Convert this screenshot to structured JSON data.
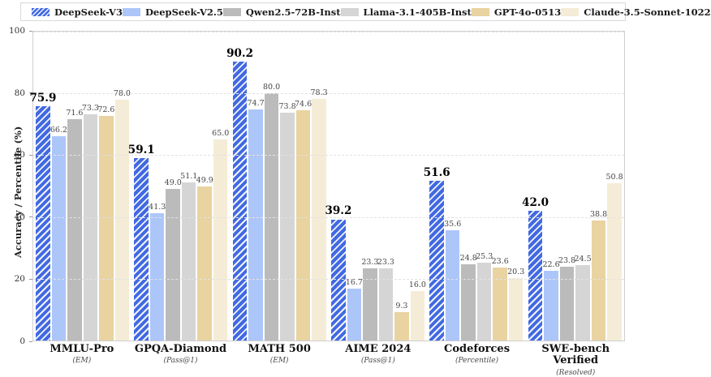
{
  "chart_data": {
    "type": "bar",
    "title": "",
    "ylabel": "Accuracy / Percentile (%)",
    "ylim": [
      0,
      100
    ],
    "yticks": [
      0,
      20,
      40,
      60,
      80,
      100
    ],
    "grid": "horizontal-dashed",
    "legend_position": "top",
    "categories": [
      {
        "name": "MMLU-Pro",
        "metric": "(EM)"
      },
      {
        "name": "GPQA-Diamond",
        "metric": "(Pass@1)"
      },
      {
        "name": "MATH 500",
        "metric": "(EM)"
      },
      {
        "name": "AIME 2024",
        "metric": "(Pass@1)"
      },
      {
        "name": "Codeforces",
        "metric": "(Percentile)"
      },
      {
        "name": "SWE-bench Verified",
        "metric": "(Resolved)"
      }
    ],
    "series": [
      {
        "name": "DeepSeek-V3",
        "color": "#4169E1",
        "hatch": true,
        "values": [
          75.9,
          59.1,
          90.2,
          39.2,
          51.6,
          42.0
        ]
      },
      {
        "name": "DeepSeek-V2.5",
        "color": "#ADC6FA",
        "hatch": false,
        "values": [
          66.2,
          41.3,
          74.7,
          16.7,
          35.6,
          22.6
        ]
      },
      {
        "name": "Qwen2.5-72B-Inst",
        "color": "#BBBBBB",
        "hatch": false,
        "values": [
          71.6,
          49.0,
          80.0,
          23.3,
          24.8,
          23.8
        ]
      },
      {
        "name": "Llama-3.1-405B-Inst",
        "color": "#D5D5D5",
        "hatch": false,
        "values": [
          73.3,
          51.1,
          73.8,
          23.3,
          25.3,
          24.5
        ]
      },
      {
        "name": "GPT-4o-0513",
        "color": "#E8D3A1",
        "hatch": false,
        "values": [
          72.6,
          49.9,
          74.6,
          9.3,
          23.6,
          38.8
        ]
      },
      {
        "name": "Claude-3.5-Sonnet-1022",
        "color": "#F5ECD7",
        "hatch": false,
        "values": [
          78.0,
          65.0,
          78.3,
          16.0,
          20.3,
          50.8
        ]
      }
    ]
  }
}
